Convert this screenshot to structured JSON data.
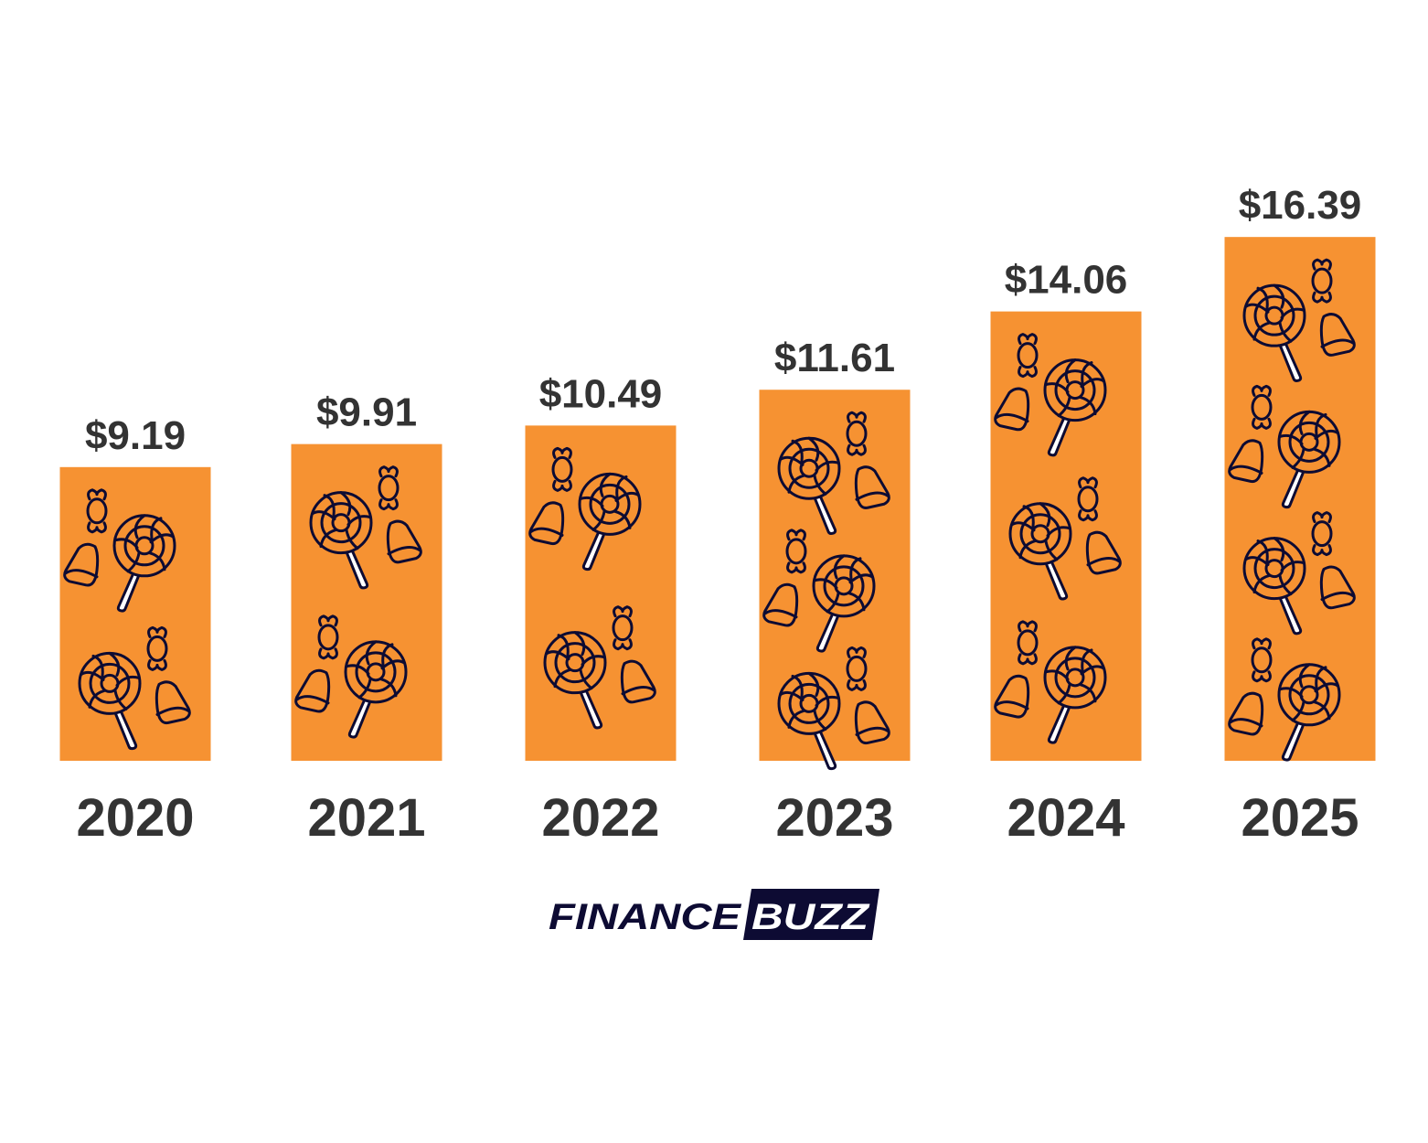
{
  "chart_data": {
    "type": "bar",
    "title": "",
    "xlabel": "",
    "ylabel": "",
    "categories": [
      "2020",
      "2021",
      "2022",
      "2023",
      "2024",
      "2025"
    ],
    "values": [
      9.19,
      9.91,
      10.49,
      11.61,
      14.06,
      16.39
    ],
    "value_labels": [
      "$9.19",
      "$9.91",
      "$10.49",
      "$11.61",
      "$14.06",
      "$16.39"
    ],
    "ylim": [
      0,
      18
    ],
    "grid": false,
    "legend": "none",
    "bar_color": "#F69232",
    "bar_pattern_icons": [
      "lollipop-icon",
      "wrapped-candy-icon",
      "candy-corn-icon"
    ],
    "icon_color": "#0D0B33"
  },
  "branding": {
    "logo_part1": "FINANCE",
    "logo_part2": "BUZZ",
    "logo_color": "#0D0B33"
  }
}
